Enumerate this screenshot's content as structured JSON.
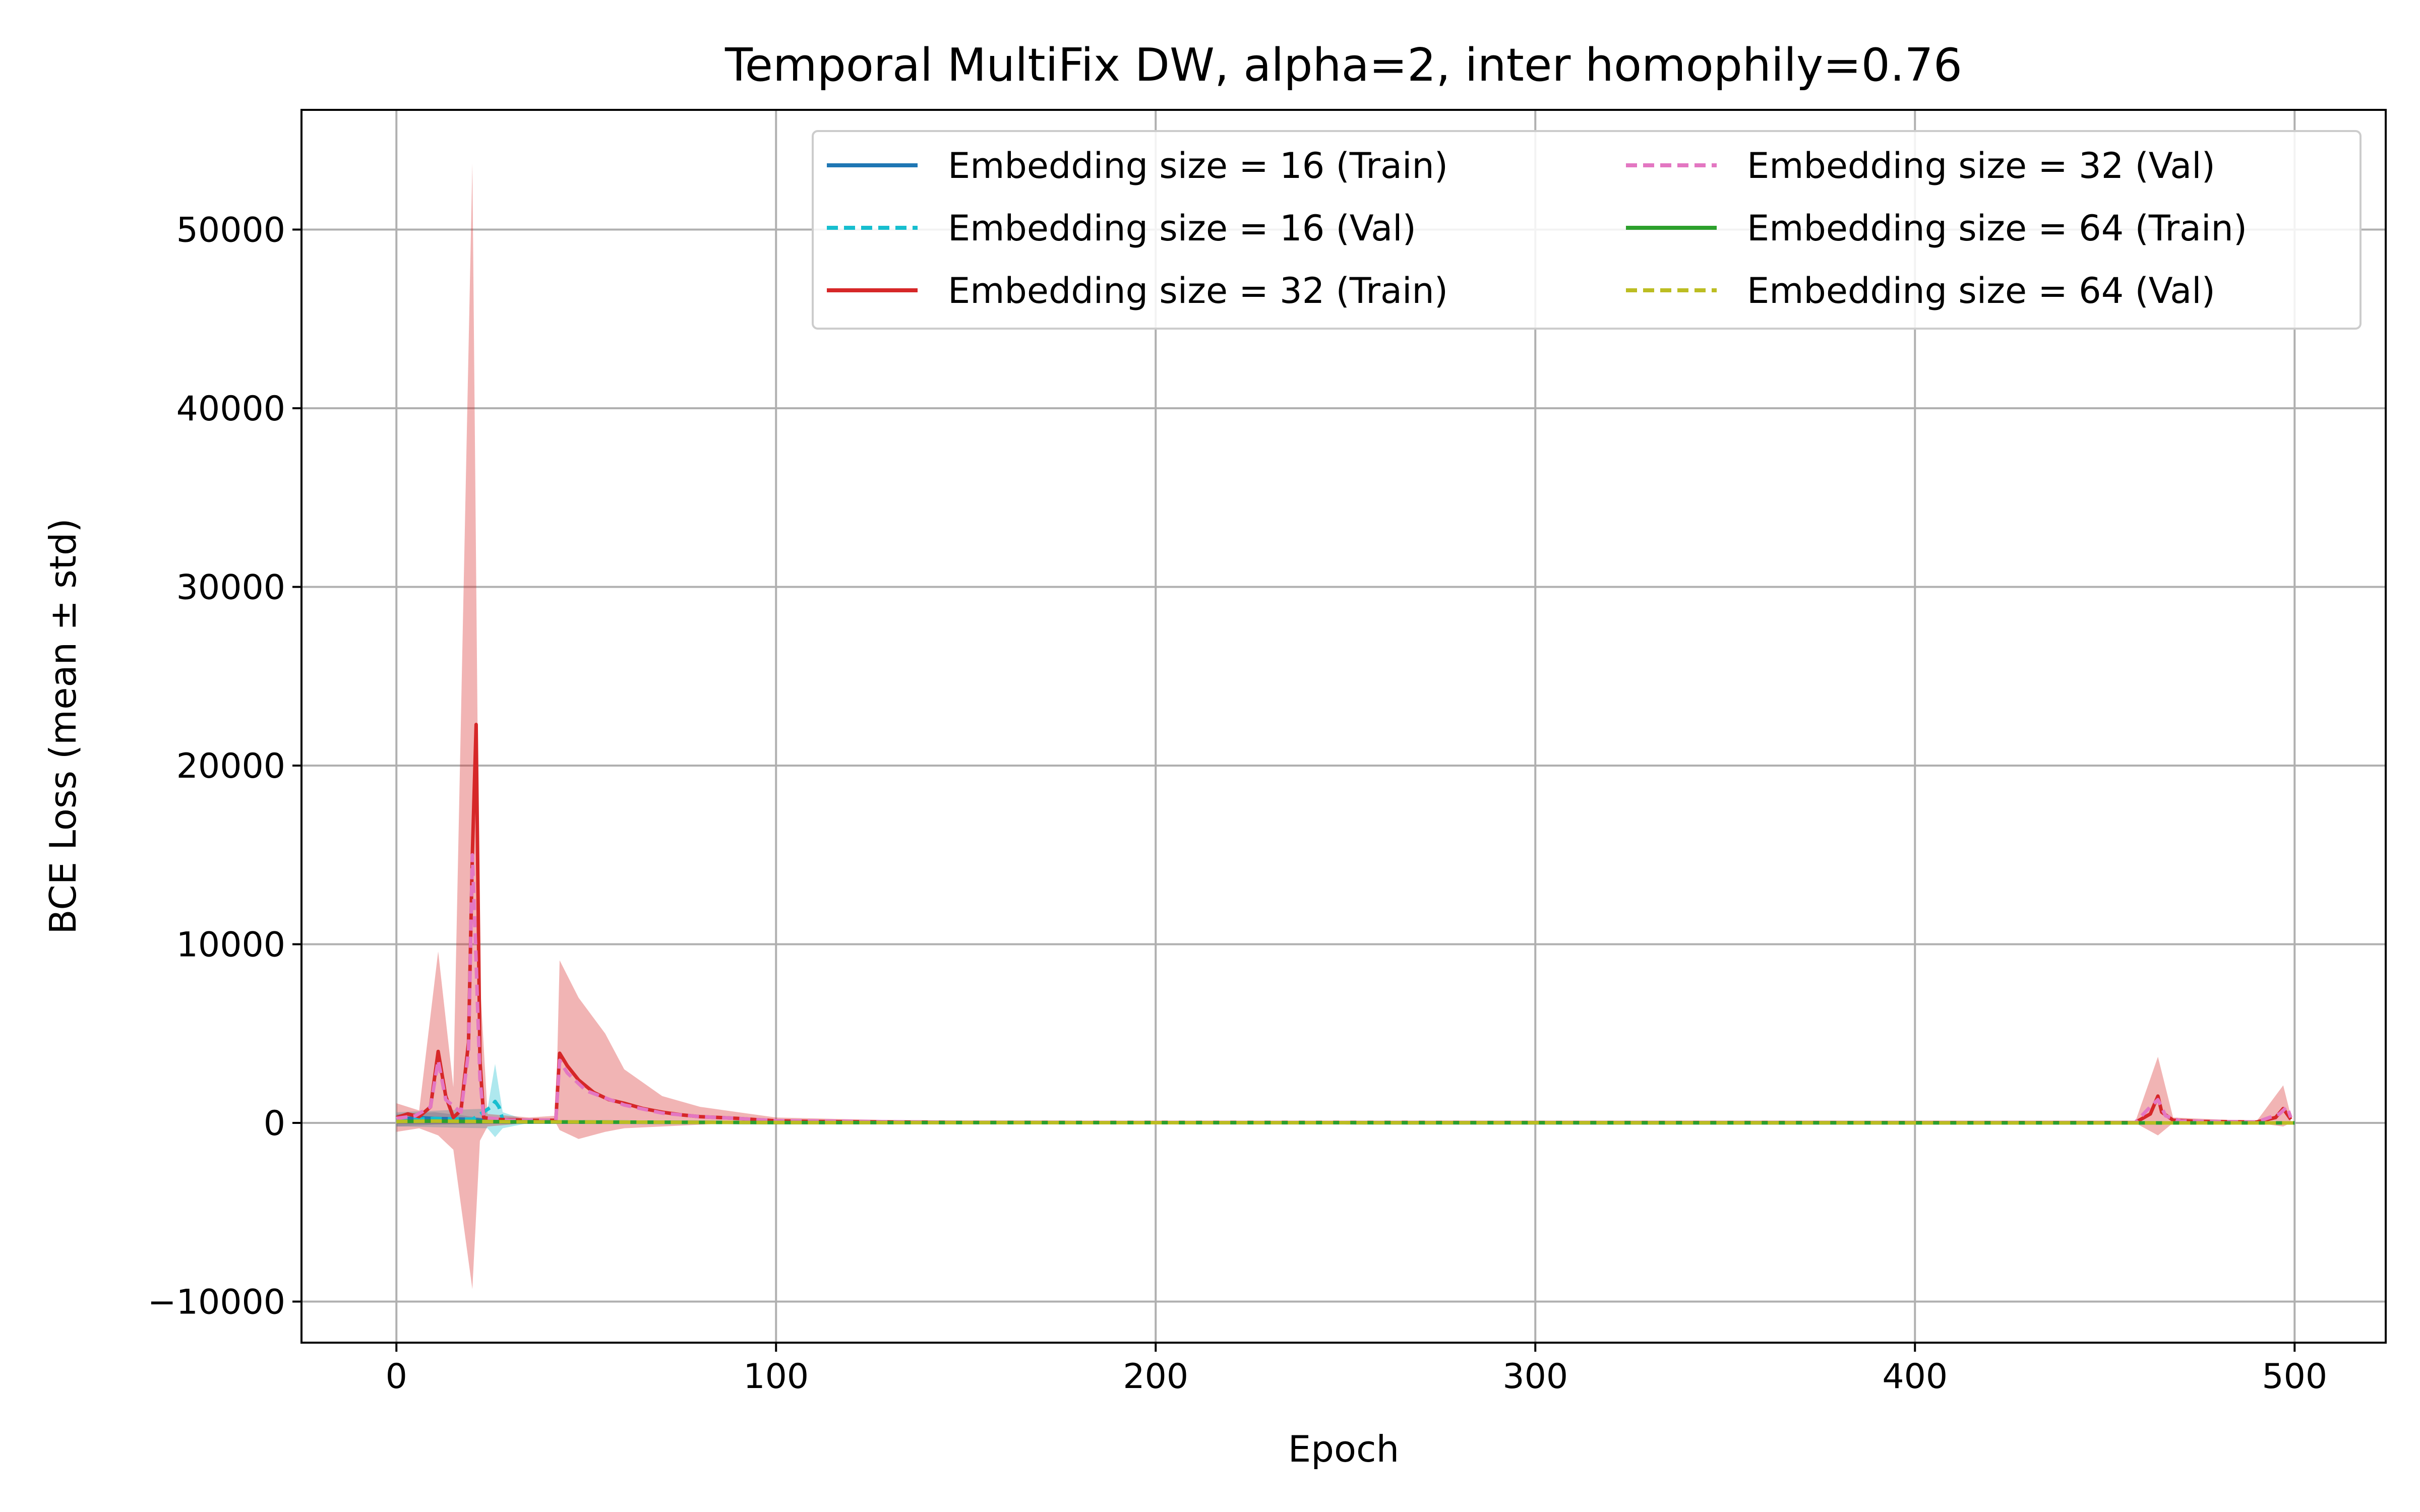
{
  "chart_data": {
    "type": "line",
    "title": "Temporal MultiFix DW, alpha=2, inter homophily=0.76",
    "xlabel": "Epoch",
    "ylabel": "BCE Loss (mean ± std)",
    "xlim": [
      -25,
      524
    ],
    "ylim": [
      -12300,
      56700
    ],
    "xticks": [
      0,
      100,
      200,
      300,
      400,
      500
    ],
    "xtick_labels": [
      "0",
      "100",
      "200",
      "300",
      "400",
      "500"
    ],
    "yticks": [
      -10000,
      0,
      10000,
      20000,
      30000,
      40000,
      50000
    ],
    "ytick_labels": [
      "−10000",
      "0",
      "10000",
      "20000",
      "30000",
      "40000",
      "50000"
    ],
    "grid": true,
    "legend_position": "top-right",
    "legend_columns": 2,
    "series": [
      {
        "name": "Embedding size = 16 (Train)",
        "color": "#1f77b4",
        "dash": "solid",
        "points": [
          [
            0,
            150
          ],
          [
            5,
            300
          ],
          [
            10,
            250
          ],
          [
            20,
            200
          ],
          [
            25,
            100
          ],
          [
            28,
            50
          ],
          [
            100,
            20
          ],
          [
            300,
            5
          ],
          [
            500,
            0
          ]
        ],
        "band": [
          [
            0,
            -200,
            500
          ],
          [
            10,
            -100,
            600
          ],
          [
            28,
            -50,
            150
          ],
          [
            100,
            0,
            50
          ],
          [
            500,
            0,
            0
          ]
        ]
      },
      {
        "name": "Embedding size = 16 (Val)",
        "color": "#17becf",
        "dash": "dashed",
        "points": [
          [
            0,
            150
          ],
          [
            10,
            250
          ],
          [
            20,
            200
          ],
          [
            25,
            900
          ],
          [
            26,
            1200
          ],
          [
            27,
            900
          ],
          [
            28,
            200
          ],
          [
            35,
            60
          ],
          [
            100,
            20
          ],
          [
            500,
            0
          ]
        ],
        "band": [
          [
            0,
            -200,
            600
          ],
          [
            24,
            -300,
            800
          ],
          [
            26,
            -800,
            3300
          ],
          [
            28,
            -300,
            600
          ],
          [
            35,
            0,
            100
          ],
          [
            100,
            0,
            40
          ],
          [
            500,
            0,
            0
          ]
        ]
      },
      {
        "name": "Embedding size = 32 (Train)",
        "color": "#d62728",
        "dash": "solid",
        "points": [
          [
            0,
            300
          ],
          [
            3,
            500
          ],
          [
            6,
            350
          ],
          [
            9,
            900
          ],
          [
            11,
            4000
          ],
          [
            13,
            1500
          ],
          [
            15,
            300
          ],
          [
            17,
            700
          ],
          [
            19,
            4500
          ],
          [
            20,
            15000
          ],
          [
            21,
            22300
          ],
          [
            22,
            3500
          ],
          [
            23,
            300
          ],
          [
            26,
            200
          ],
          [
            35,
            150
          ],
          [
            42,
            150
          ],
          [
            43,
            3900
          ],
          [
            45,
            3200
          ],
          [
            48,
            2400
          ],
          [
            52,
            1700
          ],
          [
            56,
            1300
          ],
          [
            60,
            1100
          ],
          [
            65,
            800
          ],
          [
            70,
            600
          ],
          [
            75,
            450
          ],
          [
            80,
            350
          ],
          [
            85,
            300
          ],
          [
            90,
            250
          ],
          [
            95,
            180
          ],
          [
            100,
            120
          ],
          [
            110,
            80
          ],
          [
            150,
            30
          ],
          [
            458,
            20
          ],
          [
            462,
            500
          ],
          [
            464,
            1500
          ],
          [
            465,
            600
          ],
          [
            468,
            150
          ],
          [
            475,
            80
          ],
          [
            490,
            50
          ],
          [
            495,
            300
          ],
          [
            497,
            800
          ],
          [
            499,
            200
          ]
        ],
        "band": [
          [
            0,
            -500,
            1100
          ],
          [
            6,
            -300,
            700
          ],
          [
            11,
            -700,
            9600
          ],
          [
            15,
            -1500,
            2000
          ],
          [
            20,
            -9300,
            53700
          ],
          [
            22,
            -1000,
            8000
          ],
          [
            24,
            -200,
            500
          ],
          [
            35,
            0,
            300
          ],
          [
            42,
            0,
            400
          ],
          [
            43,
            -400,
            9100
          ],
          [
            48,
            -900,
            7000
          ],
          [
            55,
            -500,
            5000
          ],
          [
            60,
            -300,
            3000
          ],
          [
            70,
            -200,
            1500
          ],
          [
            80,
            -100,
            900
          ],
          [
            90,
            0,
            600
          ],
          [
            100,
            0,
            300
          ],
          [
            150,
            0,
            60
          ],
          [
            458,
            0,
            40
          ],
          [
            464,
            -700,
            3700
          ],
          [
            468,
            0,
            300
          ],
          [
            490,
            0,
            100
          ],
          [
            497,
            -200,
            2100
          ],
          [
            499,
            0,
            400
          ]
        ]
      },
      {
        "name": "Embedding size = 32 (Val)",
        "color": "#e377c2",
        "dash": "dashed",
        "points": [
          [
            0,
            250
          ],
          [
            5,
            400
          ],
          [
            9,
            900
          ],
          [
            11,
            3500
          ],
          [
            13,
            1300
          ],
          [
            17,
            600
          ],
          [
            19,
            4000
          ],
          [
            20,
            15000
          ],
          [
            21,
            9000
          ],
          [
            22,
            2500
          ],
          [
            23,
            300
          ],
          [
            30,
            150
          ],
          [
            42,
            150
          ],
          [
            43,
            3500
          ],
          [
            45,
            2800
          ],
          [
            50,
            1800
          ],
          [
            60,
            1000
          ],
          [
            70,
            550
          ],
          [
            80,
            350
          ],
          [
            90,
            250
          ],
          [
            100,
            120
          ],
          [
            150,
            30
          ],
          [
            458,
            20
          ],
          [
            462,
            900
          ],
          [
            464,
            1300
          ],
          [
            466,
            400
          ],
          [
            470,
            100
          ],
          [
            490,
            50
          ],
          [
            496,
            500
          ],
          [
            498,
            900
          ],
          [
            499,
            300
          ]
        ],
        "band": []
      },
      {
        "name": "Embedding size = 64 (Train)",
        "color": "#2ca02c",
        "dash": "solid",
        "points": [
          [
            0,
            80
          ],
          [
            10,
            100
          ],
          [
            30,
            60
          ],
          [
            100,
            20
          ],
          [
            500,
            0
          ]
        ],
        "band": []
      },
      {
        "name": "Embedding size = 64 (Val)",
        "color": "#bcbd22",
        "dash": "dashed",
        "points": [
          [
            0,
            80
          ],
          [
            10,
            100
          ],
          [
            30,
            60
          ],
          [
            100,
            20
          ],
          [
            500,
            0
          ]
        ],
        "band": []
      }
    ]
  }
}
